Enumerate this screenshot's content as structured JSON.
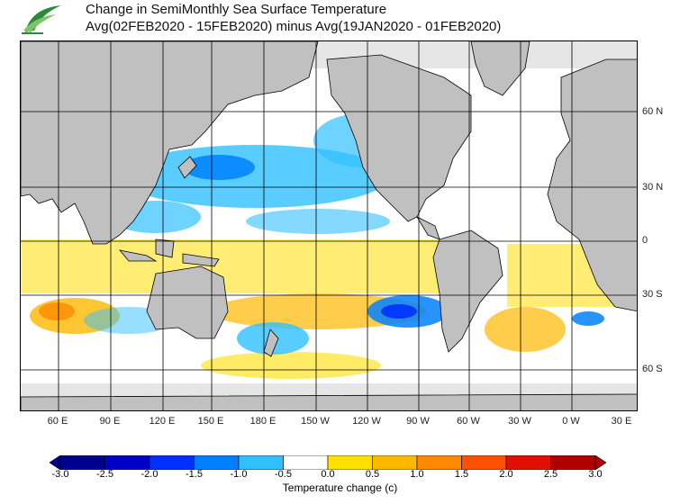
{
  "header": {
    "line1": "Change in SemiMonthly Sea Surface Temperature",
    "line2": "Avg(02FEB2020 - 15FEB2020) minus Avg(19JAN2020 - 01FEB2020)"
  },
  "map": {
    "lat_labels": [
      "60 N",
      "30 N",
      "0",
      "30 S",
      "60 S"
    ],
    "lon_labels": [
      "60 E",
      "90 E",
      "120 E",
      "150 E",
      "180 E",
      "150 W",
      "120 W",
      "90 W",
      "60 W",
      "30 W",
      "0 W",
      "30 E"
    ]
  },
  "colorbar": {
    "ticks": [
      "-3.0",
      "-2.5",
      "-2.0",
      "-1.5",
      "-1.0",
      "-0.5",
      "0.0",
      "0.5",
      "1.0",
      "1.5",
      "2.0",
      "2.5",
      "3.0"
    ],
    "colors": [
      "#000090",
      "#0000c8",
      "#0030ff",
      "#0080ff",
      "#30c0ff",
      "#ffffff",
      "#ffe000",
      "#ffb800",
      "#ff8800",
      "#ff5000",
      "#e01000",
      "#b00000"
    ],
    "title": "Temperature change  (c)"
  }
}
